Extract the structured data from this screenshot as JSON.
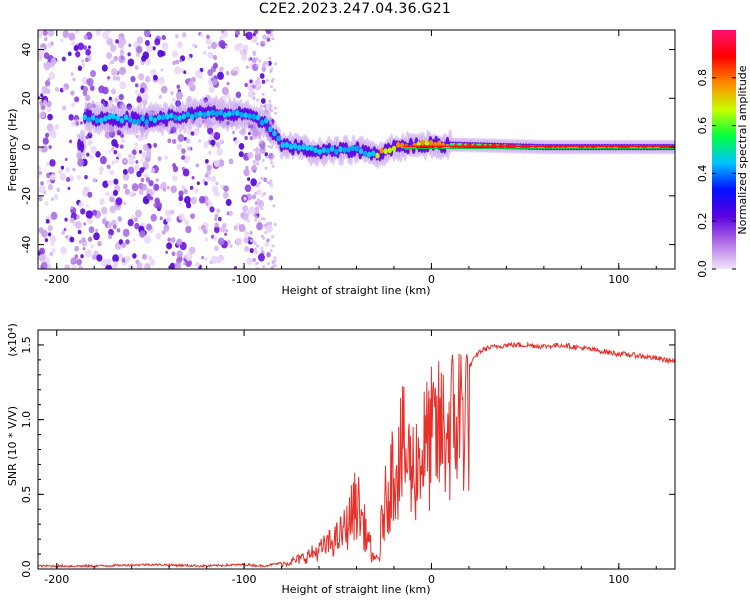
{
  "title": "C2E2.2023.247.04.36.G21",
  "chart_data": [
    {
      "type": "heatmap",
      "xlabel": "Height of straight line (km)",
      "ylabel": "Frequency (Hz)",
      "xlim": [
        -210,
        130
      ],
      "ylim": [
        -50,
        48
      ],
      "xticks": [
        -200,
        -100,
        0,
        100
      ],
      "yticks": [
        -40,
        -20,
        0,
        20,
        40
      ],
      "colorbar": {
        "label": "Normalized spectral amplitude",
        "range": [
          0,
          1
        ],
        "ticks": [
          "0.0",
          "0.2",
          "0.4",
          "0.6",
          "0.8"
        ],
        "colormap": [
          "#f3e4f9",
          "#b06ee6",
          "#5a00e0",
          "#0010ff",
          "#00c4ff",
          "#00ff40",
          "#c8ff00",
          "#ff8a00",
          "#ff0000",
          "#ff1070"
        ]
      },
      "signal_track": [
        {
          "x": -185,
          "f": 12
        },
        {
          "x": -150,
          "f": 11
        },
        {
          "x": -120,
          "f": 14
        },
        {
          "x": -100,
          "f": 13
        },
        {
          "x": -88,
          "f": 10
        },
        {
          "x": -80,
          "f": 1
        },
        {
          "x": -60,
          "f": -2
        },
        {
          "x": -40,
          "f": -1
        },
        {
          "x": -30,
          "f": -3
        },
        {
          "x": -20,
          "f": 0
        },
        {
          "x": 0,
          "f": 1
        },
        {
          "x": 10,
          "f": 1
        },
        {
          "x": 60,
          "f": 0
        },
        {
          "x": 130,
          "f": 0
        }
      ],
      "noise_region_x": [
        -210,
        -85
      ]
    },
    {
      "type": "line",
      "xlabel": "Height of straight line (km)",
      "ylabel": "SNR (10 * V/V)",
      "y_exponent": "(x10⁴)",
      "xlim": [
        -210,
        130
      ],
      "ylim": [
        0,
        1.6
      ],
      "xticks": [
        -200,
        -100,
        0,
        100
      ],
      "yticks": [
        "0.0",
        "0.5",
        "1.0",
        "1.5"
      ],
      "color": "#e8302a",
      "series": [
        {
          "x": [
            -210,
            -180,
            -150,
            -120,
            -100,
            -90,
            -80,
            -70,
            -60,
            -50,
            -45,
            -40,
            -35,
            -30,
            -25,
            -20,
            -15,
            -10,
            -5,
            0,
            5,
            10,
            15,
            20,
            25,
            30,
            40,
            50,
            60,
            70,
            80,
            90,
            100,
            110,
            120,
            130
          ],
          "y": [
            0.02,
            0.02,
            0.03,
            0.02,
            0.03,
            0.02,
            0.04,
            0.08,
            0.15,
            0.25,
            0.35,
            0.55,
            0.3,
            0.05,
            0.5,
            0.85,
            0.95,
            0.8,
            0.95,
            1.05,
            1.1,
            1.15,
            1.25,
            1.35,
            1.45,
            1.48,
            1.5,
            1.5,
            1.49,
            1.5,
            1.48,
            1.46,
            1.44,
            1.43,
            1.41,
            1.39
          ]
        }
      ]
    }
  ]
}
